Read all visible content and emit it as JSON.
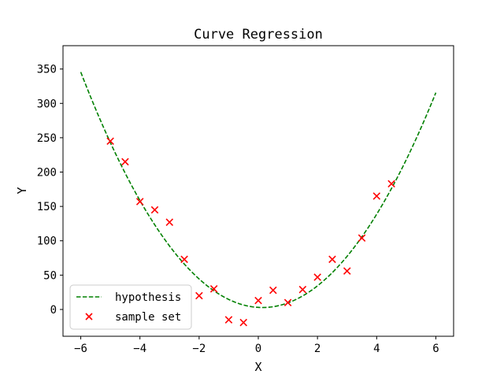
{
  "chart_data": {
    "type": "scatter",
    "title": "Curve Regression",
    "xlabel": "X",
    "ylabel": "Y",
    "xlim": [
      -6.6,
      6.6
    ],
    "ylim": [
      -39,
      384
    ],
    "xticks": [
      -6,
      -4,
      -2,
      0,
      2,
      4,
      6
    ],
    "yticks": [
      0,
      50,
      100,
      150,
      200,
      250,
      300,
      350
    ],
    "grid": false,
    "legend_position": "lower-left",
    "series": [
      {
        "name": "hypothesis",
        "kind": "line",
        "style": "dashed",
        "color": "#008000",
        "curve": {
          "a": 9.1,
          "b": -2.5,
          "c": 3
        },
        "x_range": [
          -6,
          6
        ]
      },
      {
        "name": "sample set",
        "kind": "scatter",
        "marker": "x",
        "color": "#ff0000",
        "points": [
          [
            -5.0,
            245
          ],
          [
            -4.5,
            215
          ],
          [
            -4.0,
            157
          ],
          [
            -3.5,
            145
          ],
          [
            -3.0,
            127
          ],
          [
            -2.5,
            73
          ],
          [
            -2.0,
            20
          ],
          [
            -1.5,
            30
          ],
          [
            -1.0,
            -15
          ],
          [
            -0.5,
            -19
          ],
          [
            0.0,
            13
          ],
          [
            0.5,
            28
          ],
          [
            1.0,
            10
          ],
          [
            1.5,
            29
          ],
          [
            2.0,
            47
          ],
          [
            2.5,
            73
          ],
          [
            3.0,
            56
          ],
          [
            3.5,
            104
          ],
          [
            4.0,
            165
          ],
          [
            4.5,
            183
          ]
        ]
      }
    ]
  }
}
